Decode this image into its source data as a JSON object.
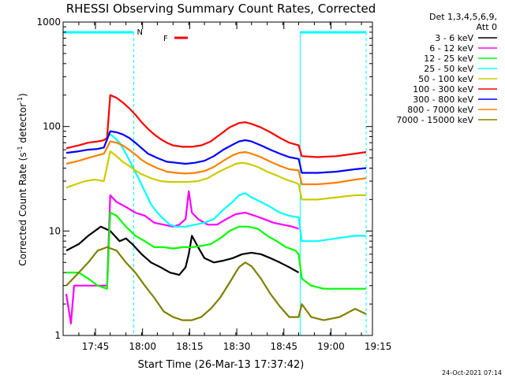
{
  "chart_data": {
    "type": "line",
    "title": "RHESSI Observing Summary Count Rates, Corrected",
    "xlabel": "Start Time (26-Mar-13 17:37:42)",
    "ylabel": "Corrected Count Rate (s⁻¹ detector⁻¹)",
    "ylabel_parts": [
      "Corrected Count Rate (s",
      "-1",
      " detector",
      "-1",
      ")"
    ],
    "y_scale": "log",
    "ylim": [
      1,
      1000
    ],
    "xlim": [
      -3.0,
      95.5
    ],
    "x_unit": "minutes after 17:37:42",
    "y_ticks": [
      {
        "v": 1,
        "label": "1"
      },
      {
        "v": 10,
        "label": "10"
      },
      {
        "v": 100,
        "label": "100"
      },
      {
        "v": 1000,
        "label": "1000"
      }
    ],
    "x_ticks": [
      {
        "t": 7.3,
        "label": "17:45"
      },
      {
        "t": 22.3,
        "label": "18:00"
      },
      {
        "t": 37.3,
        "label": "18:15"
      },
      {
        "t": 52.3,
        "label": "18:30"
      },
      {
        "t": 67.3,
        "label": "18:45"
      },
      {
        "t": 82.3,
        "label": "19:00"
      },
      {
        "t": 97.3,
        "label": "19:15"
      }
    ],
    "detectors": "Det 1,3,4,5,6,9,",
    "attenuator": "Att 0",
    "legend_position": "right",
    "markers": [
      {
        "label": "N",
        "color": "#00ffff"
      },
      {
        "label": "F",
        "color": "#ff0000"
      }
    ],
    "night_intervals": [
      {
        "start": -3.0,
        "end": 19.5,
        "style": "solid-bar"
      },
      {
        "start": 72.5,
        "end": 93.5,
        "style": "solid-bar"
      }
    ],
    "series": [
      {
        "name": "3 - 6 keV",
        "color": "#000000",
        "points": [
          [
            -2,
            6.5
          ],
          [
            2,
            7.5
          ],
          [
            5,
            9
          ],
          [
            9,
            11
          ],
          [
            12,
            10
          ],
          [
            15,
            8
          ],
          [
            17,
            8.5
          ],
          [
            19,
            7.5
          ],
          [
            22,
            6
          ],
          [
            25,
            5
          ],
          [
            28,
            4.5
          ],
          [
            31,
            4
          ],
          [
            34,
            3.8
          ],
          [
            36,
            4.5
          ],
          [
            37,
            6
          ],
          [
            38,
            9
          ],
          [
            40,
            7
          ],
          [
            42,
            5.5
          ],
          [
            45,
            5
          ],
          [
            48,
            5.2
          ],
          [
            51,
            5.5
          ],
          [
            54,
            6
          ],
          [
            57,
            6.2
          ],
          [
            60,
            6
          ],
          [
            63,
            5.5
          ],
          [
            66,
            5
          ],
          [
            69,
            4.5
          ],
          [
            72,
            4
          ]
        ]
      },
      {
        "name": "6 - 12 keV",
        "color": "#ff00ff",
        "points": [
          [
            -2,
            2.5
          ],
          [
            -0.5,
            1.3
          ],
          [
            0.5,
            3
          ],
          [
            3,
            3
          ],
          [
            6,
            3
          ],
          [
            9,
            3
          ],
          [
            11,
            3
          ],
          [
            12,
            22
          ],
          [
            14,
            19
          ],
          [
            17,
            17
          ],
          [
            20,
            15
          ],
          [
            23,
            14
          ],
          [
            26,
            12
          ],
          [
            29,
            11.5
          ],
          [
            32,
            11
          ],
          [
            34,
            11.5
          ],
          [
            36,
            13
          ],
          [
            37,
            24
          ],
          [
            38,
            15
          ],
          [
            40,
            13
          ],
          [
            43,
            11.5
          ],
          [
            46,
            11.5
          ],
          [
            49,
            13
          ],
          [
            52,
            14.5
          ],
          [
            55,
            15
          ],
          [
            58,
            14
          ],
          [
            61,
            13
          ],
          [
            64,
            12
          ],
          [
            67,
            11.5
          ],
          [
            70,
            11
          ],
          [
            72,
            10.5
          ]
        ]
      },
      {
        "name": "12 - 25 keV",
        "color": "#00ff00",
        "points": [
          [
            -2,
            4
          ],
          [
            2,
            4
          ],
          [
            5,
            3.5
          ],
          [
            8,
            3
          ],
          [
            11,
            2.8
          ],
          [
            12,
            15
          ],
          [
            14,
            14
          ],
          [
            17,
            11
          ],
          [
            20,
            9
          ],
          [
            23,
            8
          ],
          [
            26,
            7
          ],
          [
            29,
            7
          ],
          [
            32,
            6.8
          ],
          [
            35,
            7
          ],
          [
            38,
            7
          ],
          [
            41,
            7.2
          ],
          [
            44,
            7.5
          ],
          [
            47,
            8.5
          ],
          [
            50,
            10
          ],
          [
            53,
            11
          ],
          [
            56,
            11
          ],
          [
            59,
            10.5
          ],
          [
            62,
            9
          ],
          [
            65,
            8
          ],
          [
            68,
            7
          ],
          [
            71,
            6.5
          ],
          [
            72,
            6
          ],
          [
            73,
            3.5
          ],
          [
            76,
            3
          ],
          [
            80,
            2.8
          ],
          [
            85,
            2.8
          ],
          [
            90,
            2.8
          ],
          [
            93.5,
            2.8
          ]
        ]
      },
      {
        "name": "25 - 50 keV",
        "color": "#00ffff",
        "points": [
          [
            11,
            88
          ],
          [
            13,
            80
          ],
          [
            15,
            70
          ],
          [
            17,
            55
          ],
          [
            19,
            42
          ],
          [
            21,
            32
          ],
          [
            23,
            24
          ],
          [
            25,
            18
          ],
          [
            27,
            15
          ],
          [
            29,
            13
          ],
          [
            31,
            11.5
          ],
          [
            33,
            11
          ],
          [
            36,
            11
          ],
          [
            39,
            11.5
          ],
          [
            42,
            12
          ],
          [
            45,
            13
          ],
          [
            48,
            16
          ],
          [
            51,
            19
          ],
          [
            53,
            22
          ],
          [
            55,
            23
          ],
          [
            57,
            21
          ],
          [
            60,
            19
          ],
          [
            63,
            17
          ],
          [
            66,
            15
          ],
          [
            69,
            14
          ],
          [
            72,
            13.5
          ],
          [
            73,
            8
          ],
          [
            78,
            8
          ],
          [
            84,
            8.5
          ],
          [
            90,
            9
          ],
          [
            93.5,
            9
          ]
        ]
      },
      {
        "name": "50 - 100 keV",
        "color": "#cccc00",
        "points": [
          [
            -2,
            26
          ],
          [
            1,
            28
          ],
          [
            4,
            30
          ],
          [
            7,
            31
          ],
          [
            10,
            30
          ],
          [
            12,
            58
          ],
          [
            14,
            52
          ],
          [
            16,
            46
          ],
          [
            18,
            42
          ],
          [
            20,
            38
          ],
          [
            22,
            35
          ],
          [
            25,
            32
          ],
          [
            28,
            30
          ],
          [
            31,
            29.5
          ],
          [
            34,
            29.5
          ],
          [
            37,
            29.5
          ],
          [
            40,
            30
          ],
          [
            43,
            32
          ],
          [
            46,
            36
          ],
          [
            49,
            40
          ],
          [
            52,
            44
          ],
          [
            54,
            45
          ],
          [
            56,
            44
          ],
          [
            59,
            41
          ],
          [
            62,
            37
          ],
          [
            65,
            34
          ],
          [
            68,
            31
          ],
          [
            71,
            29
          ],
          [
            72,
            28
          ],
          [
            73,
            20
          ],
          [
            78,
            20
          ],
          [
            84,
            21
          ],
          [
            90,
            22
          ],
          [
            93.5,
            22
          ]
        ]
      },
      {
        "name": "100 - 300 keV",
        "color": "#ff0000",
        "points": [
          [
            -2,
            62
          ],
          [
            2,
            66
          ],
          [
            5,
            70
          ],
          [
            8,
            72
          ],
          [
            10,
            74
          ],
          [
            11,
            78
          ],
          [
            12,
            200
          ],
          [
            14,
            188
          ],
          [
            16,
            170
          ],
          [
            18,
            150
          ],
          [
            20,
            130
          ],
          [
            22,
            110
          ],
          [
            24,
            95
          ],
          [
            26,
            84
          ],
          [
            28,
            76
          ],
          [
            30,
            70
          ],
          [
            32,
            66
          ],
          [
            35,
            64
          ],
          [
            38,
            64
          ],
          [
            41,
            66
          ],
          [
            44,
            72
          ],
          [
            47,
            84
          ],
          [
            50,
            98
          ],
          [
            53,
            108
          ],
          [
            55,
            110
          ],
          [
            57,
            106
          ],
          [
            60,
            98
          ],
          [
            63,
            88
          ],
          [
            66,
            78
          ],
          [
            69,
            70
          ],
          [
            72,
            66
          ],
          [
            73,
            52
          ],
          [
            78,
            51
          ],
          [
            84,
            52
          ],
          [
            90,
            55
          ],
          [
            93.5,
            57
          ]
        ]
      },
      {
        "name": "300 - 800 keV",
        "color": "#0000ff",
        "points": [
          [
            -2,
            56
          ],
          [
            2,
            58
          ],
          [
            5,
            60
          ],
          [
            8,
            61
          ],
          [
            10,
            63
          ],
          [
            12,
            90
          ],
          [
            14,
            88
          ],
          [
            16,
            84
          ],
          [
            18,
            78
          ],
          [
            20,
            70
          ],
          [
            22,
            62
          ],
          [
            24,
            55
          ],
          [
            27,
            50
          ],
          [
            30,
            46
          ],
          [
            33,
            45
          ],
          [
            36,
            44
          ],
          [
            39,
            45
          ],
          [
            42,
            47
          ],
          [
            45,
            52
          ],
          [
            48,
            60
          ],
          [
            51,
            67
          ],
          [
            53,
            72
          ],
          [
            55,
            74
          ],
          [
            57,
            72
          ],
          [
            60,
            66
          ],
          [
            63,
            60
          ],
          [
            66,
            55
          ],
          [
            69,
            51
          ],
          [
            72,
            49
          ],
          [
            73,
            36
          ],
          [
            78,
            36
          ],
          [
            84,
            37
          ],
          [
            90,
            39
          ],
          [
            93.5,
            40
          ]
        ]
      },
      {
        "name": "800 - 7000 keV",
        "color": "#ff7f00",
        "points": [
          [
            -2,
            44
          ],
          [
            2,
            47
          ],
          [
            5,
            50
          ],
          [
            8,
            53
          ],
          [
            10,
            55
          ],
          [
            12,
            72
          ],
          [
            14,
            70
          ],
          [
            16,
            66
          ],
          [
            18,
            60
          ],
          [
            20,
            54
          ],
          [
            22,
            48
          ],
          [
            24,
            44
          ],
          [
            27,
            40
          ],
          [
            30,
            37
          ],
          [
            33,
            36
          ],
          [
            36,
            35.5
          ],
          [
            39,
            36
          ],
          [
            42,
            37.5
          ],
          [
            45,
            41
          ],
          [
            48,
            47
          ],
          [
            51,
            53
          ],
          [
            53,
            56
          ],
          [
            55,
            57
          ],
          [
            57,
            55
          ],
          [
            60,
            51
          ],
          [
            63,
            46
          ],
          [
            66,
            42
          ],
          [
            69,
            39
          ],
          [
            72,
            38
          ],
          [
            73,
            28
          ],
          [
            78,
            28
          ],
          [
            84,
            29
          ],
          [
            90,
            31
          ],
          [
            93.5,
            32
          ]
        ]
      },
      {
        "name": "7000 - 15000 keV",
        "color": "#808000",
        "points": [
          [
            -2,
            3
          ],
          [
            2,
            4
          ],
          [
            5,
            5
          ],
          [
            8,
            6.5
          ],
          [
            11,
            7
          ],
          [
            14,
            6.5
          ],
          [
            17,
            5
          ],
          [
            20,
            4
          ],
          [
            23,
            3
          ],
          [
            26,
            2.3
          ],
          [
            29,
            1.7
          ],
          [
            32,
            1.5
          ],
          [
            35,
            1.4
          ],
          [
            38,
            1.4
          ],
          [
            41,
            1.5
          ],
          [
            44,
            1.8
          ],
          [
            47,
            2.3
          ],
          [
            50,
            3.2
          ],
          [
            53,
            4.5
          ],
          [
            55,
            5
          ],
          [
            57,
            4.6
          ],
          [
            60,
            3.5
          ],
          [
            63,
            2.5
          ],
          [
            66,
            1.9
          ],
          [
            69,
            1.5
          ],
          [
            72,
            1.5
          ],
          [
            73,
            2
          ],
          [
            76,
            1.5
          ],
          [
            80,
            1.4
          ],
          [
            85,
            1.5
          ],
          [
            90,
            1.8
          ],
          [
            93.5,
            1.6
          ]
        ]
      }
    ]
  },
  "footer": {
    "date": "24-Oct-2021 07:14"
  }
}
